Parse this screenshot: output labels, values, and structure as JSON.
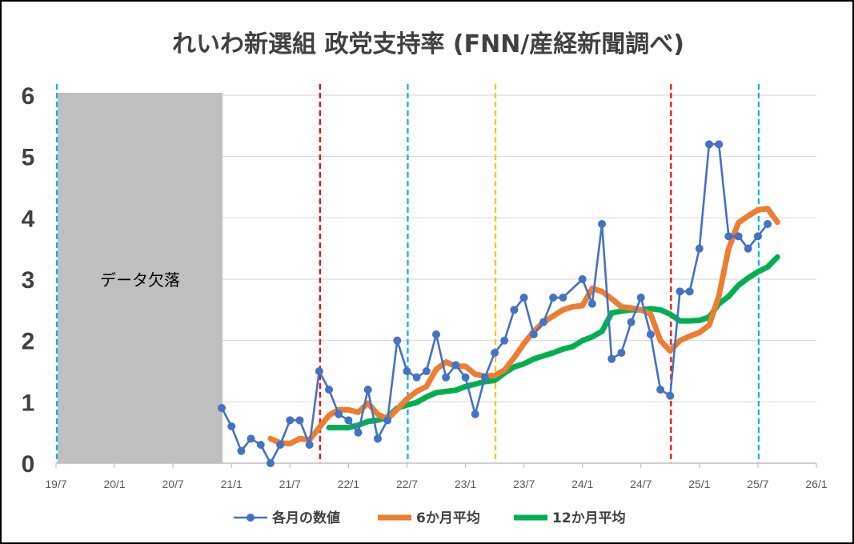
{
  "chart_data": {
    "type": "line",
    "title": "れいわ新選組 政党支持率 (FNN/産経新聞調べ)",
    "ylim": [
      0,
      6
    ],
    "yticks": [
      "0",
      "1",
      "2",
      "3",
      "4",
      "5",
      "6"
    ],
    "xlim": [
      "2019-07",
      "2026-01"
    ],
    "xticks": [
      "19/7",
      "20/1",
      "20/7",
      "21/1",
      "21/7",
      "22/1",
      "22/7",
      "23/1",
      "23/7",
      "24/1",
      "24/7",
      "25/1",
      "25/7",
      "26/1"
    ],
    "grid": "horizontal",
    "legend_position": "bottom",
    "missing_data": {
      "label": "データ欠落",
      "x_start": "2019-07",
      "x_end": "2020-12"
    },
    "vlines": [
      {
        "x": "2019-07",
        "color": "#00B0F0"
      },
      {
        "x": "2021-10",
        "color": "#FF0000"
      },
      {
        "x": "2022-07",
        "color": "#00B0F0"
      },
      {
        "x": "2023-04",
        "color": "#FFC000"
      },
      {
        "x": "2024-10",
        "color": "#FF0000"
      },
      {
        "x": "2025-07",
        "color": "#00B0F0"
      }
    ],
    "series": [
      {
        "name": "各月の数値",
        "color": "#4472C4",
        "style": "line-markers",
        "points": [
          [
            "2020-12",
            0.9
          ],
          [
            "2021-01",
            0.6
          ],
          [
            "2021-02",
            0.2
          ],
          [
            "2021-03",
            0.4
          ],
          [
            "2021-04",
            0.3
          ],
          [
            "2021-05",
            0.0
          ],
          [
            "2021-06",
            0.3
          ],
          [
            "2021-07",
            0.7
          ],
          [
            "2021-08",
            0.7
          ],
          [
            "2021-09",
            0.3
          ],
          [
            "2021-10",
            1.5
          ],
          [
            "2021-11",
            1.2
          ],
          [
            "2021-12",
            0.8
          ],
          [
            "2022-01",
            0.7
          ],
          [
            "2022-02",
            0.5
          ],
          [
            "2022-03",
            1.2
          ],
          [
            "2022-04",
            0.4
          ],
          [
            "2022-05",
            0.7
          ],
          [
            "2022-06",
            2.0
          ],
          [
            "2022-07",
            1.5
          ],
          [
            "2022-08",
            1.4
          ],
          [
            "2022-09",
            1.5
          ],
          [
            "2022-10",
            2.1
          ],
          [
            "2022-11",
            1.4
          ],
          [
            "2022-12",
            1.6
          ],
          [
            "2023-01",
            1.4
          ],
          [
            "2023-02",
            0.8
          ],
          [
            "2023-03",
            1.4
          ],
          [
            "2023-04",
            1.8
          ],
          [
            "2023-05",
            2.0
          ],
          [
            "2023-06",
            2.5
          ],
          [
            "2023-07",
            2.7
          ],
          [
            "2023-08",
            2.1
          ],
          [
            "2023-09",
            2.3
          ],
          [
            "2023-10",
            2.7
          ],
          [
            "2023-11",
            2.7
          ],
          [
            "2024-01",
            3.0
          ],
          [
            "2024-02",
            2.6
          ],
          [
            "2024-03",
            3.9
          ],
          [
            "2024-04",
            1.7
          ],
          [
            "2024-05",
            1.8
          ],
          [
            "2024-06",
            2.3
          ],
          [
            "2024-07",
            2.7
          ],
          [
            "2024-08",
            2.1
          ],
          [
            "2024-09",
            1.2
          ],
          [
            "2024-10",
            1.1
          ],
          [
            "2024-11",
            2.8
          ],
          [
            "2024-12",
            2.8
          ],
          [
            "2025-01",
            3.5
          ],
          [
            "2025-02",
            5.2
          ],
          [
            "2025-03",
            5.2
          ],
          [
            "2025-04",
            3.7
          ],
          [
            "2025-05",
            3.7
          ],
          [
            "2025-06",
            3.5
          ],
          [
            "2025-07",
            3.7
          ],
          [
            "2025-08",
            3.9
          ]
        ]
      },
      {
        "name": "6か月平均",
        "color": "#ED7D31",
        "style": "thick-line",
        "points": [
          [
            "2021-05",
            0.4
          ],
          [
            "2021-06",
            0.33
          ],
          [
            "2021-07",
            0.32
          ],
          [
            "2021-08",
            0.4
          ],
          [
            "2021-09",
            0.38
          ],
          [
            "2021-10",
            0.58
          ],
          [
            "2021-11",
            0.78
          ],
          [
            "2021-12",
            0.87
          ],
          [
            "2022-01",
            0.87
          ],
          [
            "2022-02",
            0.83
          ],
          [
            "2022-03",
            0.98
          ],
          [
            "2022-04",
            0.8
          ],
          [
            "2022-05",
            0.72
          ],
          [
            "2022-06",
            0.88
          ],
          [
            "2022-07",
            1.05
          ],
          [
            "2022-08",
            1.17
          ],
          [
            "2022-09",
            1.25
          ],
          [
            "2022-10",
            1.53
          ],
          [
            "2022-11",
            1.65
          ],
          [
            "2022-12",
            1.58
          ],
          [
            "2023-01",
            1.58
          ],
          [
            "2023-02",
            1.45
          ],
          [
            "2023-03",
            1.42
          ],
          [
            "2023-04",
            1.43
          ],
          [
            "2023-05",
            1.52
          ],
          [
            "2023-06",
            1.72
          ],
          [
            "2023-07",
            1.95
          ],
          [
            "2023-08",
            2.15
          ],
          [
            "2023-09",
            2.3
          ],
          [
            "2023-10",
            2.4
          ],
          [
            "2023-11",
            2.5
          ],
          [
            "2023-12",
            2.55
          ],
          [
            "2024-01",
            2.57
          ],
          [
            "2024-02",
            2.85
          ],
          [
            "2024-03",
            2.8
          ],
          [
            "2024-04",
            2.68
          ],
          [
            "2024-05",
            2.55
          ],
          [
            "2024-06",
            2.53
          ],
          [
            "2024-07",
            2.5
          ],
          [
            "2024-08",
            2.43
          ],
          [
            "2024-09",
            2.0
          ],
          [
            "2024-10",
            1.83
          ],
          [
            "2024-11",
            2.0
          ],
          [
            "2024-12",
            2.07
          ],
          [
            "2025-01",
            2.13
          ],
          [
            "2025-02",
            2.25
          ],
          [
            "2025-03",
            2.73
          ],
          [
            "2025-04",
            3.5
          ],
          [
            "2025-05",
            3.92
          ],
          [
            "2025-06",
            4.03
          ],
          [
            "2025-07",
            4.13
          ],
          [
            "2025-08",
            4.15
          ],
          [
            "2025-09",
            3.93
          ]
        ]
      },
      {
        "name": "12か月平均",
        "color": "#00B050",
        "style": "thick-line",
        "points": [
          [
            "2021-11",
            0.58
          ],
          [
            "2021-12",
            0.58
          ],
          [
            "2022-01",
            0.58
          ],
          [
            "2022-02",
            0.62
          ],
          [
            "2022-03",
            0.68
          ],
          [
            "2022-04",
            0.7
          ],
          [
            "2022-05",
            0.75
          ],
          [
            "2022-06",
            0.9
          ],
          [
            "2022-07",
            0.95
          ],
          [
            "2022-08",
            0.99
          ],
          [
            "2022-09",
            1.08
          ],
          [
            "2022-10",
            1.15
          ],
          [
            "2022-11",
            1.17
          ],
          [
            "2022-12",
            1.19
          ],
          [
            "2023-01",
            1.25
          ],
          [
            "2023-02",
            1.29
          ],
          [
            "2023-03",
            1.33
          ],
          [
            "2023-04",
            1.35
          ],
          [
            "2023-05",
            1.47
          ],
          [
            "2023-06",
            1.57
          ],
          [
            "2023-07",
            1.62
          ],
          [
            "2023-08",
            1.7
          ],
          [
            "2023-09",
            1.75
          ],
          [
            "2023-10",
            1.8
          ],
          [
            "2023-11",
            1.86
          ],
          [
            "2023-12",
            1.9
          ],
          [
            "2024-01",
            2.0
          ],
          [
            "2024-02",
            2.06
          ],
          [
            "2024-03",
            2.15
          ],
          [
            "2024-04",
            2.45
          ],
          [
            "2024-05",
            2.48
          ],
          [
            "2024-06",
            2.5
          ],
          [
            "2024-07",
            2.5
          ],
          [
            "2024-08",
            2.52
          ],
          [
            "2024-09",
            2.5
          ],
          [
            "2024-10",
            2.43
          ],
          [
            "2024-11",
            2.32
          ],
          [
            "2024-12",
            2.32
          ],
          [
            "2025-01",
            2.33
          ],
          [
            "2025-02",
            2.38
          ],
          [
            "2025-03",
            2.6
          ],
          [
            "2025-04",
            2.72
          ],
          [
            "2025-05",
            2.9
          ],
          [
            "2025-06",
            3.02
          ],
          [
            "2025-07",
            3.12
          ],
          [
            "2025-08",
            3.2
          ],
          [
            "2025-09",
            3.36
          ]
        ]
      }
    ]
  }
}
